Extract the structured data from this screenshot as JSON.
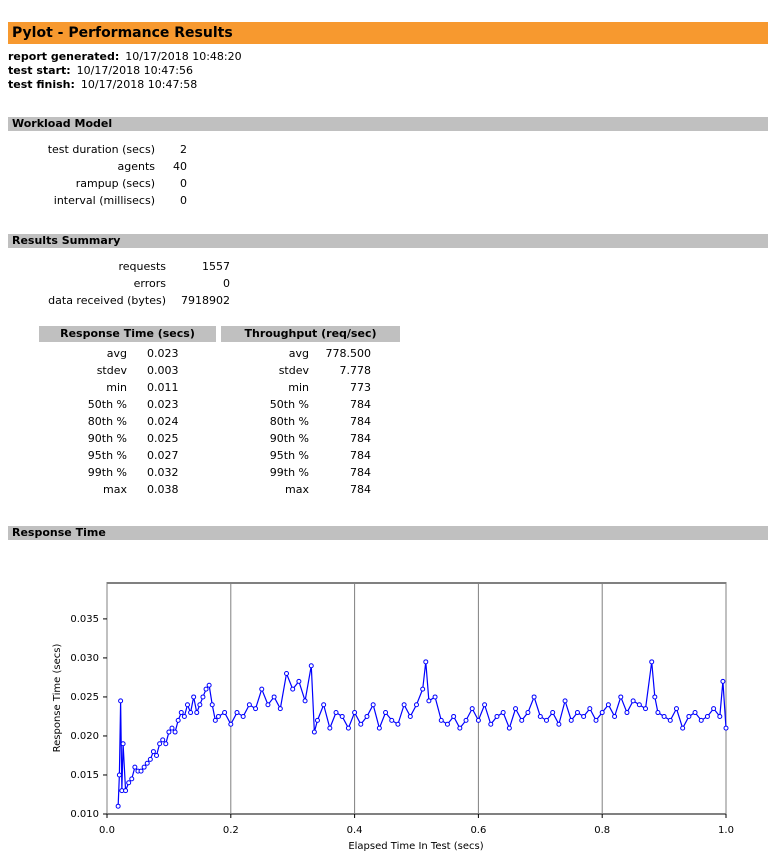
{
  "header": {
    "title": "Pylot - Performance Results"
  },
  "meta": [
    {
      "label": "report generated:",
      "value": "10/17/2018 10:48:20"
    },
    {
      "label": "test start:",
      "value": "10/17/2018 10:47:56"
    },
    {
      "label": "test finish:",
      "value": "10/17/2018 10:47:58"
    }
  ],
  "workload": {
    "title": "Workload Model",
    "rows": [
      [
        "test duration (secs)",
        "2"
      ],
      [
        "agents",
        "40"
      ],
      [
        "rampup (secs)",
        "0"
      ],
      [
        "interval (millisecs)",
        "0"
      ]
    ]
  },
  "results": {
    "title": "Results Summary",
    "rows": [
      [
        "requests",
        "1557"
      ],
      [
        "errors",
        "0"
      ],
      [
        "data received (bytes)",
        "7918902"
      ]
    ]
  },
  "response_time_table": {
    "header": "Response Time (secs)",
    "rows": [
      [
        "avg",
        "0.023"
      ],
      [
        "stdev",
        "0.003"
      ],
      [
        "min",
        "0.011"
      ],
      [
        "50th %",
        "0.023"
      ],
      [
        "80th %",
        "0.024"
      ],
      [
        "90th %",
        "0.025"
      ],
      [
        "95th %",
        "0.027"
      ],
      [
        "99th %",
        "0.032"
      ],
      [
        "max",
        "0.038"
      ]
    ]
  },
  "throughput_table": {
    "header": "Throughput (req/sec)",
    "rows": [
      [
        "avg",
        "778.500"
      ],
      [
        "stdev",
        "7.778"
      ],
      [
        "min",
        "773"
      ],
      [
        "50th %",
        "784"
      ],
      [
        "80th %",
        "784"
      ],
      [
        "90th %",
        "784"
      ],
      [
        "95th %",
        "784"
      ],
      [
        "99th %",
        "784"
      ],
      [
        "max",
        "784"
      ]
    ]
  },
  "response_time_section": {
    "title": "Response Time"
  },
  "chart_data": {
    "type": "line",
    "xlabel": "Elapsed Time In Test (secs)",
    "ylabel": "Response Time (secs)",
    "xlim": [
      0,
      1
    ],
    "ylim": [
      0.01,
      0.0396
    ],
    "xticks": [
      {
        "value": 0,
        "label": "0.0"
      },
      0.2,
      0.4,
      0.6,
      0.8,
      {
        "value": 1,
        "label": "1.0"
      }
    ],
    "yticks": [
      {
        "value": 0.01,
        "label": "0.010"
      },
      0.015,
      {
        "value": 0.02,
        "label": "0.020"
      },
      0.025,
      {
        "value": 0.03,
        "label": "0.030"
      },
      0.035
    ],
    "grid": "x",
    "series": [
      {
        "color": "#0000ff",
        "x": [
          0.018,
          0.02,
          0.022,
          0.024,
          0.026,
          0.03,
          0.035,
          0.04,
          0.045,
          0.05,
          0.055,
          0.06,
          0.065,
          0.07,
          0.075,
          0.08,
          0.085,
          0.09,
          0.095,
          0.1,
          0.105,
          0.11,
          0.115,
          0.12,
          0.125,
          0.13,
          0.135,
          0.14,
          0.145,
          0.15,
          0.155,
          0.16,
          0.165,
          0.17,
          0.175,
          0.18,
          0.19,
          0.2,
          0.21,
          0.22,
          0.23,
          0.24,
          0.25,
          0.26,
          0.27,
          0.28,
          0.29,
          0.3,
          0.31,
          0.32,
          0.33,
          0.335,
          0.34,
          0.35,
          0.36,
          0.37,
          0.38,
          0.39,
          0.4,
          0.41,
          0.42,
          0.43,
          0.44,
          0.45,
          0.46,
          0.47,
          0.48,
          0.49,
          0.5,
          0.51,
          0.515,
          0.52,
          0.53,
          0.54,
          0.55,
          0.56,
          0.57,
          0.58,
          0.59,
          0.6,
          0.61,
          0.62,
          0.63,
          0.64,
          0.65,
          0.66,
          0.67,
          0.68,
          0.69,
          0.7,
          0.71,
          0.72,
          0.73,
          0.74,
          0.75,
          0.76,
          0.77,
          0.78,
          0.79,
          0.8,
          0.81,
          0.82,
          0.83,
          0.84,
          0.85,
          0.86,
          0.87,
          0.88,
          0.885,
          0.89,
          0.9,
          0.91,
          0.92,
          0.93,
          0.94,
          0.95,
          0.96,
          0.97,
          0.98,
          0.99,
          0.995,
          1.0
        ],
        "values": [
          0.011,
          0.015,
          0.0245,
          0.013,
          0.019,
          0.013,
          0.014,
          0.0145,
          0.016,
          0.0155,
          0.0155,
          0.016,
          0.0165,
          0.017,
          0.018,
          0.0175,
          0.019,
          0.0195,
          0.019,
          0.0205,
          0.021,
          0.0205,
          0.022,
          0.023,
          0.0225,
          0.024,
          0.023,
          0.025,
          0.023,
          0.024,
          0.025,
          0.026,
          0.0265,
          0.024,
          0.022,
          0.0225,
          0.023,
          0.0215,
          0.023,
          0.0225,
          0.024,
          0.0235,
          0.026,
          0.024,
          0.025,
          0.0235,
          0.028,
          0.026,
          0.027,
          0.0245,
          0.029,
          0.0205,
          0.022,
          0.024,
          0.021,
          0.023,
          0.0225,
          0.021,
          0.023,
          0.0215,
          0.0225,
          0.024,
          0.021,
          0.023,
          0.022,
          0.0215,
          0.024,
          0.0225,
          0.024,
          0.026,
          0.0295,
          0.0245,
          0.025,
          0.022,
          0.0215,
          0.0225,
          0.021,
          0.022,
          0.0235,
          0.022,
          0.024,
          0.0215,
          0.0225,
          0.023,
          0.021,
          0.0235,
          0.022,
          0.023,
          0.025,
          0.0225,
          0.022,
          0.023,
          0.0215,
          0.0245,
          0.022,
          0.023,
          0.0225,
          0.0235,
          0.022,
          0.023,
          0.024,
          0.0225,
          0.025,
          0.023,
          0.0245,
          0.024,
          0.0235,
          0.0295,
          0.025,
          0.023,
          0.0225,
          0.022,
          0.0235,
          0.021,
          0.0225,
          0.023,
          0.022,
          0.0225,
          0.0235,
          0.0225,
          0.027,
          0.021
        ]
      }
    ]
  }
}
